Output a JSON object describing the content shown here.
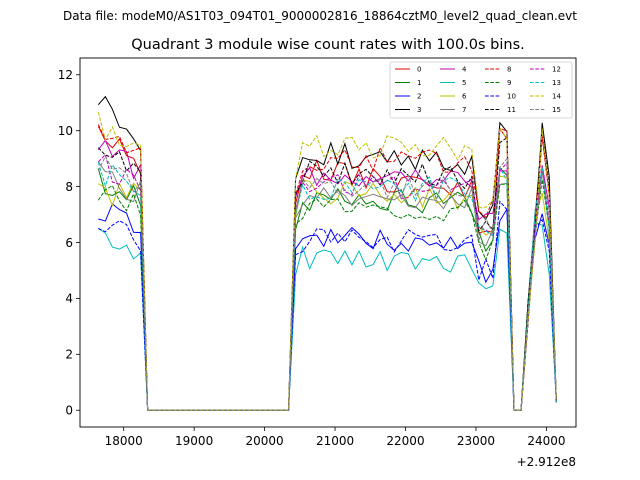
{
  "suptitle": "Data file: modeM0/AS1T03_094T01_9000002816_18864cztM0_level2_quad_clean.evt",
  "chart_data": {
    "type": "line",
    "title": "Quadrant 3 module wise count rates with 100.0s bins.",
    "xlabel": "",
    "ylabel": "",
    "x_offset_label": "+2.912e8",
    "x_offset": 291200000,
    "xlim": [
      17380,
      24420
    ],
    "ylim": [
      -0.6,
      12.6
    ],
    "xticks": [
      18000,
      19000,
      20000,
      21000,
      22000,
      23000,
      24000
    ],
    "xtick_labels": [
      "18000",
      "19000",
      "20000",
      "21000",
      "22000",
      "23000",
      "24000"
    ],
    "yticks": [
      0,
      2,
      4,
      6,
      8,
      10,
      12
    ],
    "ytick_labels": [
      "0",
      "2",
      "4",
      "6",
      "8",
      "10",
      "12"
    ],
    "grid": false,
    "legend_position": "top-right",
    "bin_width_s": 100,
    "segments": [
      {
        "start": 17640,
        "end": 18240
      },
      {
        "start": 18340,
        "end": 20340,
        "zero": true
      },
      {
        "start": 20440,
        "end": 23440
      },
      {
        "start": 23540,
        "end": 23640,
        "zero": true
      },
      {
        "start": 23740,
        "end": 24140
      }
    ],
    "series": [
      {
        "name": "0",
        "color": "#e00000",
        "style": "solid",
        "seed": 1,
        "levels": [
          10.0,
          8.6,
          7.7,
          9.8,
          10.0
        ]
      },
      {
        "name": "1",
        "color": "#007f00",
        "style": "solid",
        "seed": 2,
        "levels": [
          8.3,
          7.6,
          7.3,
          8.6,
          8.5
        ]
      },
      {
        "name": "2",
        "color": "#0000ff",
        "style": "solid",
        "seed": 3,
        "levels": [
          7.3,
          6.3,
          6.0,
          6.9,
          7.3
        ]
      },
      {
        "name": "3",
        "color": "#000000",
        "style": "solid",
        "seed": 4,
        "levels": [
          11.2,
          9.2,
          8.8,
          10.0,
          10.3
        ]
      },
      {
        "name": "4",
        "color": "#bf00bf",
        "style": "solid",
        "seed": 5,
        "levels": [
          9.4,
          8.5,
          8.4,
          8.7,
          8.9
        ]
      },
      {
        "name": "5",
        "color": "#00bfbf",
        "style": "solid",
        "seed": 6,
        "levels": [
          6.4,
          5.4,
          5.2,
          6.2,
          6.5
        ]
      },
      {
        "name": "6",
        "color": "#bfbf00",
        "style": "solid",
        "seed": 7,
        "levels": [
          7.8,
          7.8,
          7.6,
          8.3,
          8.0
        ]
      },
      {
        "name": "7",
        "color": "#808080",
        "style": "solid",
        "seed": 8,
        "levels": [
          8.4,
          7.8,
          7.6,
          8.2,
          8.4
        ]
      },
      {
        "name": "8",
        "color": "#e00000",
        "style": "dashed",
        "seed": 9,
        "levels": [
          9.9,
          9.0,
          8.9,
          9.8,
          9.9
        ]
      },
      {
        "name": "9",
        "color": "#007f00",
        "style": "dashed",
        "seed": 10,
        "levels": [
          8.0,
          7.3,
          7.1,
          8.0,
          8.1
        ]
      },
      {
        "name": "10",
        "color": "#0000ff",
        "style": "dashed",
        "seed": 11,
        "levels": [
          6.8,
          6.1,
          6.1,
          7.2,
          7.0
        ]
      },
      {
        "name": "11",
        "color": "#000000",
        "style": "dashed",
        "seed": 12,
        "levels": [
          9.5,
          8.6,
          8.2,
          9.5,
          9.8
        ]
      },
      {
        "name": "12",
        "color": "#bf00bf",
        "style": "dashed",
        "seed": 13,
        "levels": [
          8.8,
          8.0,
          7.9,
          8.7,
          8.8
        ]
      },
      {
        "name": "13",
        "color": "#00bfbf",
        "style": "dashed",
        "seed": 14,
        "levels": [
          8.6,
          7.9,
          7.9,
          8.4,
          8.5
        ]
      },
      {
        "name": "14",
        "color": "#bfbf00",
        "style": "dashed",
        "seed": 15,
        "levels": [
          10.2,
          9.4,
          9.4,
          10.0,
          10.0
        ]
      },
      {
        "name": "15",
        "color": "#808080",
        "style": "dashed",
        "seed": 16,
        "levels": [
          8.9,
          8.1,
          7.9,
          8.8,
          8.8
        ]
      }
    ]
  }
}
